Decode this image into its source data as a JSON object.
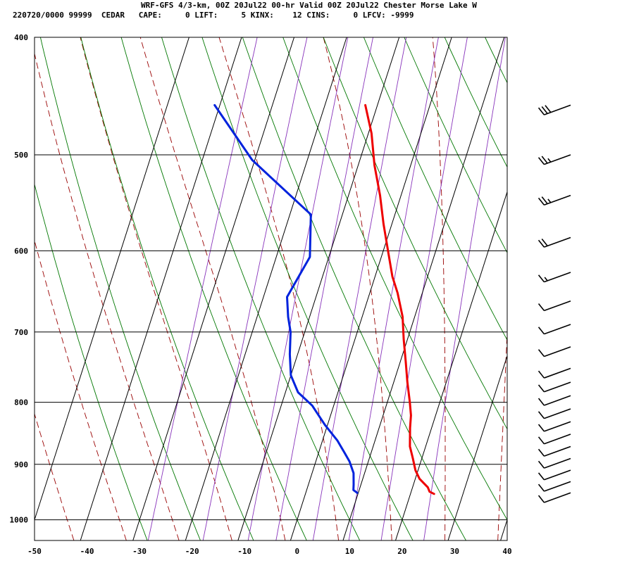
{
  "header": {
    "title": "WRF-GFS 4/3-km, 00Z 20Jul22 00-hr Valid 00Z 20Jul22 Chester Morse Lake W",
    "stats": "220720/0000 99999  CEDAR   CAPE:     0 LIFT:     5 KINX:    12 CINS:     0 LFCV: -9999"
  },
  "colors": {
    "temperature": "#ee0000",
    "dewpoint": "#0022dd",
    "isotherm_grid": "#000000",
    "dry_adiabat": "#007700",
    "moist_adiabat": "#990000",
    "mixing_ratio": "#8833bb",
    "wind_barb": "#000000"
  },
  "chart_data": {
    "type": "line",
    "subtype": "skew-t log-p sounding",
    "xlabel": "",
    "ylabel": "",
    "xlim": [
      -50,
      40
    ],
    "ylim": [
      1040,
      400
    ],
    "y_scale": "log",
    "x_ticks": [
      "-50",
      "-40",
      "-30",
      "-20",
      "-10",
      "0",
      "10",
      "20",
      "30",
      "40"
    ],
    "y_ticks": [
      "400",
      "500",
      "600",
      "700",
      "800",
      "900",
      "1000"
    ],
    "grid": true,
    "series": [
      {
        "key": "temperature",
        "points": [
          [
            24.5,
            952
          ],
          [
            23.5,
            948
          ],
          [
            22.9,
            940
          ],
          [
            20.8,
            925
          ],
          [
            19.5,
            910
          ],
          [
            18.3,
            890
          ],
          [
            17.0,
            870
          ],
          [
            15.9,
            840
          ],
          [
            15.3,
            820
          ],
          [
            14.3,
            800
          ],
          [
            12.6,
            770
          ],
          [
            11.0,
            740
          ],
          [
            9.3,
            710
          ],
          [
            7.7,
            680
          ],
          [
            5.3,
            650
          ],
          [
            3.3,
            630
          ],
          [
            0.9,
            600
          ],
          [
            -1.6,
            570
          ],
          [
            -4.0,
            540
          ],
          [
            -6.9,
            510
          ],
          [
            -9.4,
            480
          ],
          [
            -12.3,
            455
          ]
        ]
      },
      {
        "key": "dewpoint",
        "points": [
          [
            9.8,
            950
          ],
          [
            8.9,
            945
          ],
          [
            8.6,
            935
          ],
          [
            7.9,
            915
          ],
          [
            6.4,
            895
          ],
          [
            4.9,
            880
          ],
          [
            2.8,
            860
          ],
          [
            -0.5,
            835
          ],
          [
            -4.1,
            805
          ],
          [
            -7.6,
            785
          ],
          [
            -10.0,
            760
          ],
          [
            -11.5,
            730
          ],
          [
            -12.7,
            700
          ],
          [
            -14.1,
            680
          ],
          [
            -15.5,
            655
          ],
          [
            -13.6,
            607
          ],
          [
            -16.0,
            560
          ],
          [
            -30.5,
            505
          ],
          [
            -41.0,
            455
          ]
        ]
      }
    ],
    "wind_profile": [
      {
        "p": 950,
        "speed_kt": 10
      },
      {
        "p": 930,
        "speed_kt": 10
      },
      {
        "p": 910,
        "speed_kt": 10
      },
      {
        "p": 890,
        "speed_kt": 10
      },
      {
        "p": 870,
        "speed_kt": 10
      },
      {
        "p": 850,
        "speed_kt": 10
      },
      {
        "p": 830,
        "speed_kt": 10
      },
      {
        "p": 810,
        "speed_kt": 10
      },
      {
        "p": 790,
        "speed_kt": 10
      },
      {
        "p": 770,
        "speed_kt": 10
      },
      {
        "p": 750,
        "speed_kt": 10
      },
      {
        "p": 720,
        "speed_kt": 10
      },
      {
        "p": 690,
        "speed_kt": 10
      },
      {
        "p": 660,
        "speed_kt": 10
      },
      {
        "p": 625,
        "speed_kt": 15
      },
      {
        "p": 585,
        "speed_kt": 20
      },
      {
        "p": 540,
        "speed_kt": 25
      },
      {
        "p": 500,
        "speed_kt": 25
      },
      {
        "p": 455,
        "speed_kt": 30
      }
    ]
  }
}
